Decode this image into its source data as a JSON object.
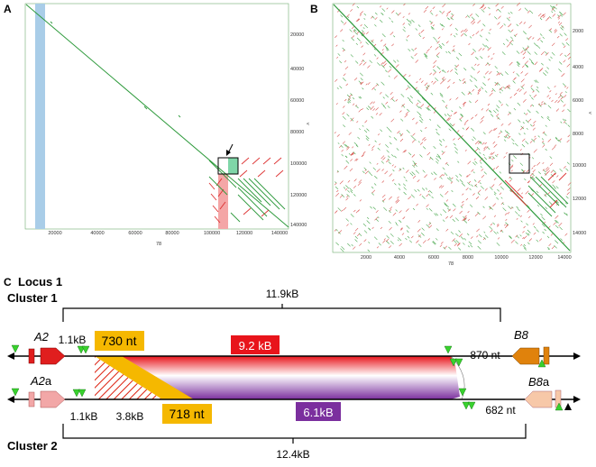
{
  "panel_a": {
    "letter": "A",
    "x_ticks": [
      "20000",
      "40000",
      "60000",
      "80000",
      "100000",
      "120000",
      "140000"
    ],
    "y_ticks": [
      "20000",
      "40000",
      "60000",
      "80000",
      "100000",
      "120000",
      "140000"
    ],
    "x_label": "78",
    "y_label": "<"
  },
  "panel_b": {
    "letter": "B",
    "x_ticks": [
      "2000",
      "4000",
      "6000",
      "8000",
      "10000",
      "12000",
      "14000"
    ],
    "y_ticks": [
      "2000",
      "4000",
      "6000",
      "8000",
      "10000",
      "12000",
      "14000"
    ],
    "x_label": "78",
    "y_label": "<"
  },
  "panel_c": {
    "letter": "C",
    "locus": "Locus 1",
    "cluster1": "Cluster 1",
    "cluster2": "Cluster 2",
    "span_top": "11.9kB",
    "span_bottom": "12.4kB",
    "gene_a2": "A2",
    "gene_a2a_main": "A2",
    "gene_a2a_suffix": "a",
    "gene_b8": "B8",
    "gene_b8a_main": "B8",
    "gene_b8a_suffix": "a",
    "dist_top_left": "1.1kB",
    "dist_bottom_left": "1.1kB",
    "box_730": "730 nt",
    "box_718": "718 nt",
    "box_92": "9.2 kB",
    "box_61": "6.1kB",
    "dist_38": "3.8kB",
    "dist_870": "870 nt",
    "dist_682": "682 nt"
  },
  "colors": {
    "blue_band": "#a9cde8",
    "pink_band": "#f4a6a6",
    "green_box": "#7fd6a8",
    "green_line": "#2e9a3c",
    "red_dots": "#d33",
    "orange_box": "#f5b800",
    "red_box": "#e8141b",
    "purple_box": "#7b2f9e",
    "gene_red": "#e01e1e",
    "gene_pink": "#f2a7a7",
    "gene_orange": "#e0820c",
    "gene_peach": "#f7c8a8",
    "triangle_green": "#39d12e"
  }
}
